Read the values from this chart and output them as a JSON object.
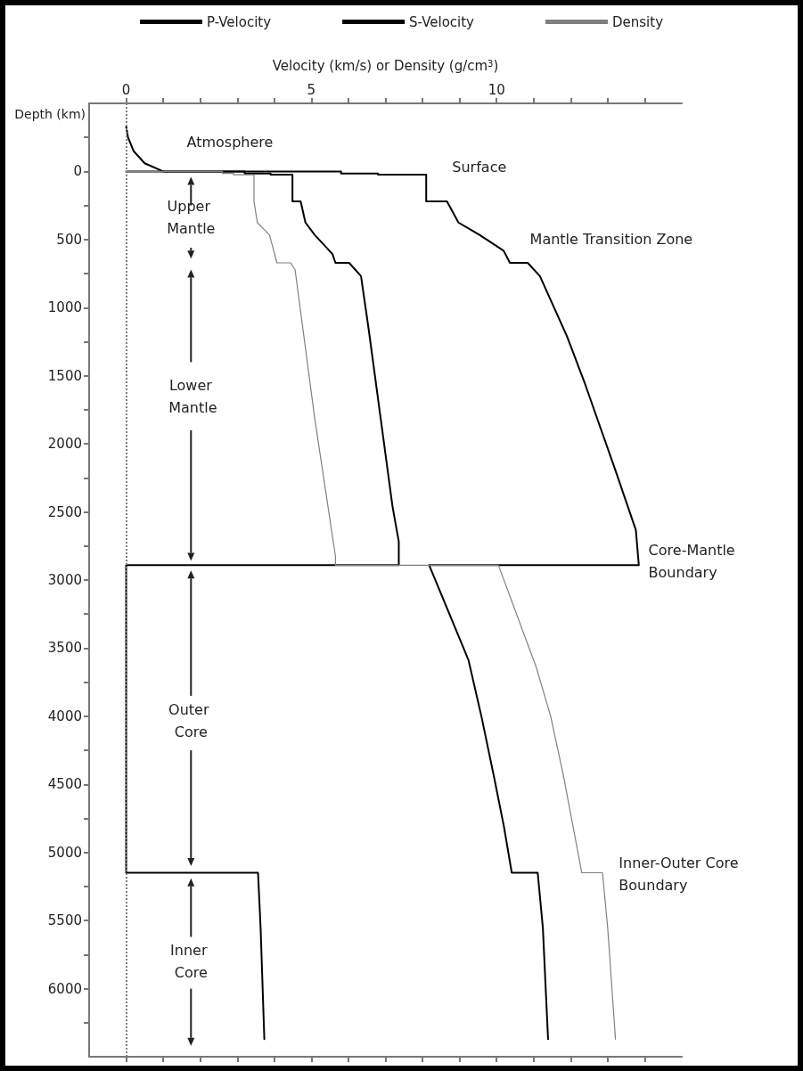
{
  "chart_data": {
    "type": "line",
    "xlabel": "Velocity (km/s) or Density (g/cm$^{3}$)",
    "ylabel": "Depth (km)",
    "xlim": [
      -1,
      15
    ],
    "xticks": [
      0,
      {
        "value": 1,
        "label": null
      },
      {
        "value": 2,
        "label": null
      },
      {
        "value": 3,
        "label": null
      },
      {
        "value": 4,
        "label": null
      },
      5,
      {
        "value": 6,
        "label": null
      },
      {
        "value": 7,
        "label": null
      },
      {
        "value": 8,
        "label": null
      },
      {
        "value": 9,
        "label": null
      },
      10,
      {
        "value": 11,
        "label": null
      },
      {
        "value": 12,
        "label": null
      },
      {
        "value": 13,
        "label": null
      },
      {
        "value": 14,
        "label": null
      }
    ],
    "ylim": [
      6500,
      -500
    ],
    "yticks": [
      {
        "value": -250,
        "label": null
      },
      0,
      {
        "value": 250,
        "label": null
      },
      500,
      {
        "value": 750,
        "label": null
      },
      1000,
      {
        "value": 1250,
        "label": null
      },
      1500,
      {
        "value": 1750,
        "label": null
      },
      2000,
      {
        "value": 2250,
        "label": null
      },
      2500,
      {
        "value": 2750,
        "label": null
      },
      3000,
      {
        "value": 3250,
        "label": null
      },
      3500,
      {
        "value": 3750,
        "label": null
      },
      4000,
      {
        "value": 4250,
        "label": null
      },
      4500,
      {
        "value": 4750,
        "label": null
      },
      5000,
      {
        "value": 5250,
        "label": null
      },
      5500,
      {
        "value": 5750,
        "label": null
      },
      6000,
      {
        "value": 6250,
        "label": null
      }
    ],
    "series": [
      {
        "name": "P-Velocity",
        "color": "#000000",
        "x": [
          0,
          0.05,
          0.2,
          0.5,
          1.0,
          5.8,
          5.8,
          6.8,
          6.8,
          8.1,
          8.1,
          8.66,
          8.97,
          9.54,
          10.19,
          10.36,
          10.84,
          11.17,
          11.9,
          12.38,
          13.19,
          13.76,
          13.84,
          8.18,
          9.24,
          9.59,
          9.93,
          10.2,
          10.41,
          11.11,
          11.25,
          11.39
        ],
        "values": [
          -330,
          -250,
          -150,
          -60,
          0,
          0,
          15,
          15,
          24,
          24,
          219,
          219,
          375,
          466,
          582,
          671,
          671,
          768,
          1210,
          1554,
          2180,
          2633,
          2891,
          2891,
          3586,
          4000,
          4444,
          4812,
          5149,
          5149,
          5556,
          6371
        ]
      },
      {
        "name": "S-Velocity",
        "color": "#000000",
        "x": [
          0,
          3.2,
          3.2,
          3.9,
          3.9,
          4.49,
          4.49,
          4.71,
          4.84,
          5.09,
          5.57,
          5.65,
          6.02,
          6.34,
          6.55,
          6.87,
          7.19,
          7.36,
          7.36,
          0,
          0,
          3.56,
          3.63,
          3.73
        ],
        "values": [
          0,
          0,
          15,
          15,
          24,
          24,
          219,
          219,
          375,
          466,
          606,
          671,
          671,
          768,
          1165,
          1812,
          2459,
          2718,
          2891,
          2891,
          5149,
          5149,
          5556,
          6371
        ]
      },
      {
        "name": "Density",
        "color": "#808080",
        "x": [
          0,
          2.6,
          2.6,
          2.9,
          2.9,
          3.45,
          3.45,
          3.54,
          3.87,
          4.07,
          4.44,
          4.56,
          5.09,
          5.65,
          5.65,
          10.05,
          11.07,
          11.46,
          11.81,
          12.3,
          12.86,
          13.0,
          13.21
        ],
        "values": [
          0,
          0,
          15,
          15,
          24,
          24,
          219,
          375,
          466,
          671,
          671,
          722,
          1812,
          2825,
          2891,
          2891,
          3640,
          4000,
          4444,
          5149,
          5149,
          5556,
          6371
        ]
      }
    ],
    "ref_lines": [
      {
        "axis": "x",
        "value": 0,
        "color": "#808080",
        "line_style": "dotted"
      }
    ],
    "annotations": [
      "Atmosphere",
      "Surface",
      "Upper Mantle",
      "Mantle Transition Zone",
      "Lower Mantle",
      "Core-Mantle Boundary",
      "Outer Core",
      "Inner-Outer Core Boundary",
      "Inner Core"
    ],
    "legend": "top",
    "grid": false,
    "marker": "none",
    "line_style": "solid"
  }
}
